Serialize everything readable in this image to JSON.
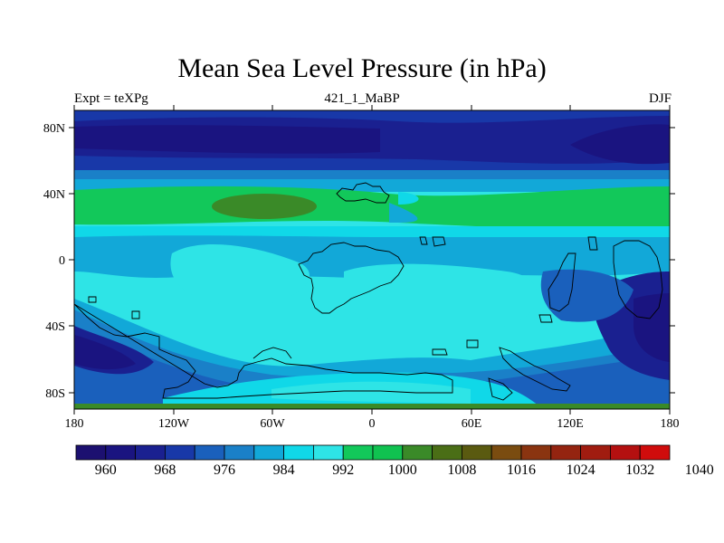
{
  "figure": {
    "title": "Mean Sea Level Pressure (in hPa)",
    "left_label": "Expt = teXPg",
    "center_label": "421_1_MaBP",
    "right_label": "DJF"
  },
  "map": {
    "lon_ticks": [
      "180",
      "120W",
      "60W",
      "0",
      "60E",
      "120E",
      "180"
    ],
    "lat_ticks": [
      "80N",
      "40N",
      "0",
      "40S",
      "80S"
    ]
  },
  "colorbar": {
    "labels": [
      "960",
      "968",
      "976",
      "984",
      "992",
      "1000",
      "1008",
      "1016",
      "1024",
      "1032",
      "1040"
    ],
    "colors": [
      "#1c1070",
      "#1a1480",
      "#1a2090",
      "#1838a8",
      "#1a60bc",
      "#1a80c8",
      "#12a8d8",
      "#10d8e8",
      "#2ee4e6",
      "#12c85a",
      "#10c250",
      "#3a8a28",
      "#4a6e16",
      "#5a5a10",
      "#7a4c10",
      "#8a3410",
      "#942410",
      "#a01c10",
      "#b41010",
      "#d00c0c"
    ]
  }
}
